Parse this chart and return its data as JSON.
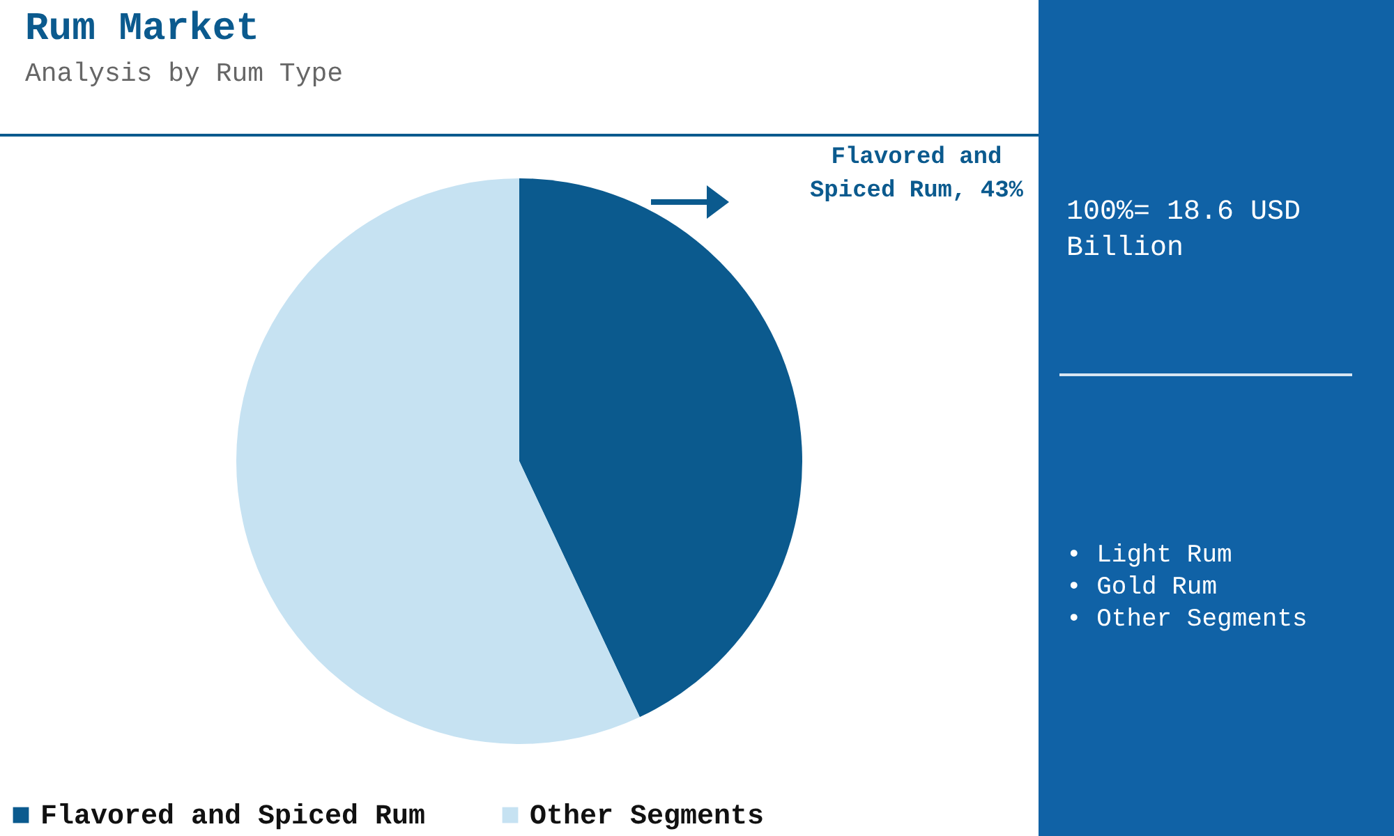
{
  "chart_data": {
    "type": "pie",
    "title": "Rum Market",
    "subtitle": "Analysis by Rum Type",
    "categories": [
      "Flavored and Spiced Rum",
      "Other Segments"
    ],
    "values": [
      43,
      57
    ],
    "colors": [
      "#0b5a8e",
      "#c6e2f2"
    ],
    "value_labels": [
      "Flavored and Spiced Rum, 43%",
      null
    ],
    "legend": "bottom",
    "annotations": [
      "100%= 18.6 USD Billion",
      "• Light Rum",
      "• Gold Rum",
      "• Other Segments"
    ]
  }
}
